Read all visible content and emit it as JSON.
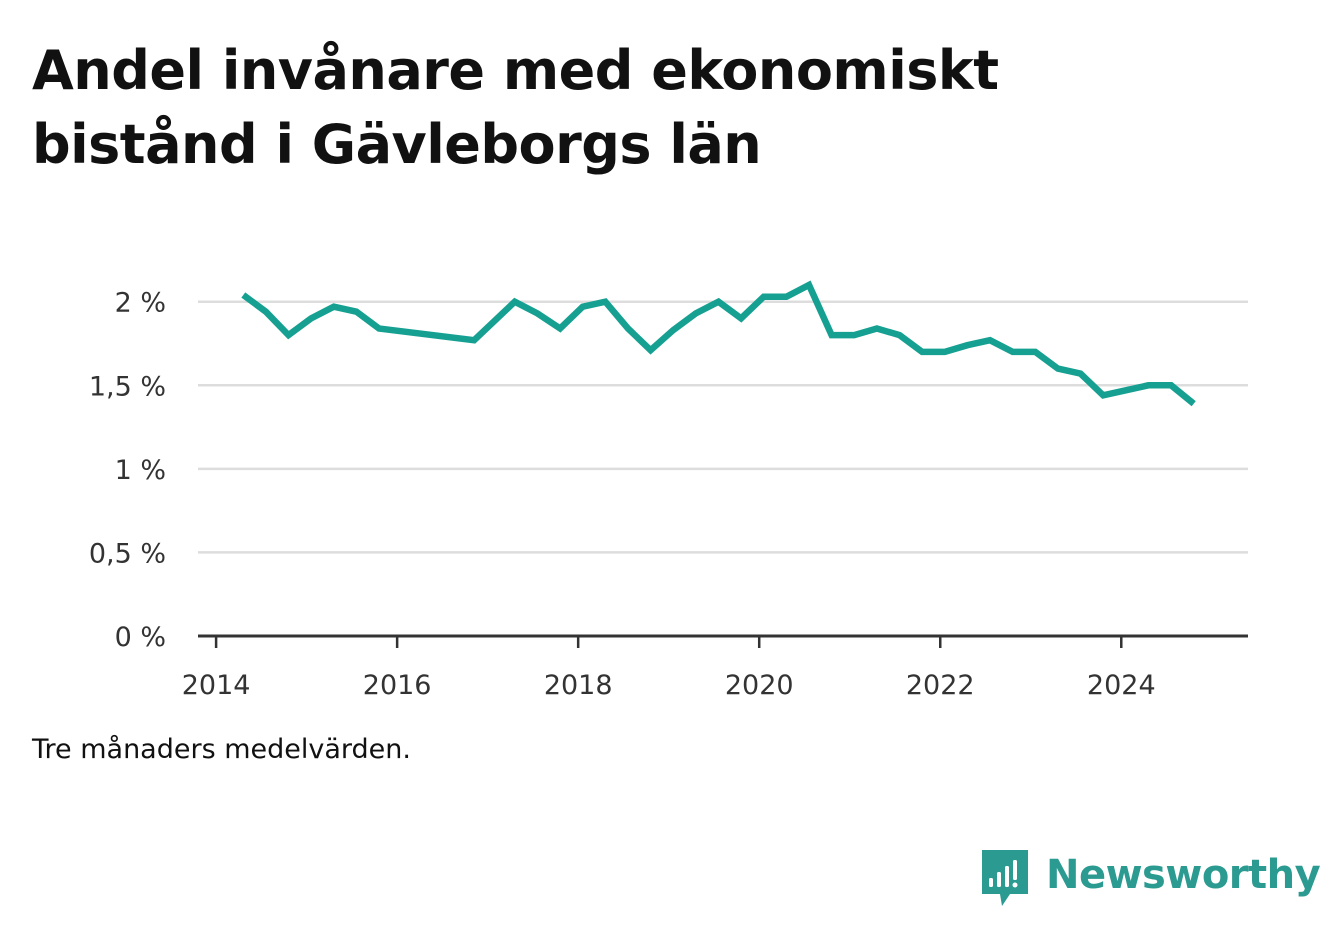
{
  "title": "Andel invånare med ekonomiskt bistånd i Gävleborgs län",
  "note": "Tre månaders medelvärden.",
  "brand": {
    "name": "Newsworthy",
    "color": "#2b9a90",
    "icon": "bar-chart-speech-bubble-icon"
  },
  "chart_data": {
    "type": "line",
    "title": "Andel invånare med ekonomiskt bistånd i Gävleborgs län",
    "xlabel": "",
    "ylabel": "",
    "x_ticks": [
      "2014",
      "2016",
      "2018",
      "2020",
      "2022",
      "2024"
    ],
    "x_tick_values": [
      2014,
      2016,
      2018,
      2020,
      2022,
      2024
    ],
    "y_ticks": [
      "0 %",
      "0,5 %",
      "1 %",
      "1,5 %",
      "2 %"
    ],
    "y_tick_values": [
      0,
      0.5,
      1,
      1.5,
      2
    ],
    "xlim": [
      2013.8,
      2025.4
    ],
    "ylim": [
      0,
      2.1
    ],
    "grid": true,
    "legend": "none",
    "line_color": "#16a091",
    "series": [
      {
        "x": [
          2014.3,
          2014.55,
          2014.8,
          2015.05,
          2015.3,
          2015.55,
          2015.8,
          2016.85,
          2017.3,
          2017.55,
          2017.8,
          2018.05,
          2018.3,
          2018.55,
          2018.8,
          2019.05,
          2019.3,
          2019.55,
          2019.8,
          2020.05,
          2020.3,
          2020.55,
          2020.8,
          2021.05,
          2021.3,
          2021.55,
          2021.8,
          2022.05,
          2022.3,
          2022.55,
          2022.8,
          2023.05,
          2023.3,
          2023.55,
          2023.8,
          2024.05,
          2024.3,
          2024.55,
          2024.8
        ],
        "values": [
          2.04,
          1.94,
          1.8,
          1.9,
          1.97,
          1.94,
          1.84,
          1.77,
          2.0,
          1.93,
          1.84,
          1.97,
          2.0,
          1.84,
          1.71,
          1.83,
          1.93,
          2.0,
          1.9,
          2.03,
          2.03,
          2.1,
          1.8,
          1.8,
          1.84,
          1.8,
          1.7,
          1.7,
          1.74,
          1.77,
          1.7,
          1.7,
          1.6,
          1.57,
          1.44,
          1.47,
          1.5,
          1.5,
          1.39
        ]
      }
    ]
  }
}
